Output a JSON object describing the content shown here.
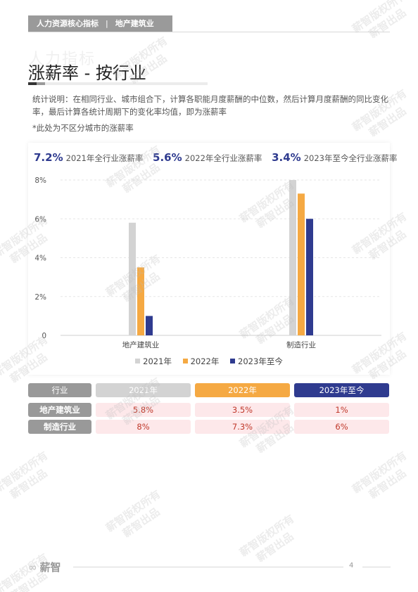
{
  "header": {
    "section": "人力资源核心指标",
    "separator": "|",
    "industry": "地产建筑业"
  },
  "ghost_title": "人力指标",
  "page_title": "涨薪率 - 按行业",
  "description": "统计说明：在相同行业、城市组合下，计算各职能月度薪酬的中位数，然后计算月度薪酬的同比变化率，最后计算各统计周期下的变化率均值，即为涨薪率",
  "note": "*此处为不区分城市的涨薪率",
  "kpis": [
    {
      "value": "7.2%",
      "label": "2021年全行业涨薪率"
    },
    {
      "value": "5.6%",
      "label": "2022年全行业涨薪率"
    },
    {
      "value": "3.4%",
      "label": "2023年至今全行业涨薪率"
    }
  ],
  "chart_data": {
    "type": "bar",
    "categories": [
      "地产建筑业",
      "制造行业"
    ],
    "series": [
      {
        "name": "2021年",
        "values": [
          5.8,
          8
        ],
        "color": "#d3d3d3"
      },
      {
        "name": "2022年",
        "values": [
          3.5,
          7.3
        ],
        "color": "#f5a943"
      },
      {
        "name": "2023年至今",
        "values": [
          1,
          6
        ],
        "color": "#2f3b8f"
      }
    ],
    "yticks": [
      "0",
      "2%",
      "4%",
      "6%",
      "8%"
    ],
    "ylim": [
      0,
      8
    ],
    "grid": true,
    "legend": "bottom"
  },
  "table": {
    "headers": [
      "行业",
      "2021年",
      "2022年",
      "2023年至今"
    ],
    "rows": [
      [
        "地产建筑业",
        "5.8%",
        "3.5%",
        "1%"
      ],
      [
        "制造行业",
        "8%",
        "7.3%",
        "6%"
      ]
    ]
  },
  "footer": {
    "logo_mark": "∞",
    "logo_text": "薪智",
    "page_number": "4"
  },
  "watermark": {
    "line1": "薪智版权所有",
    "line2": "薪智出品"
  }
}
